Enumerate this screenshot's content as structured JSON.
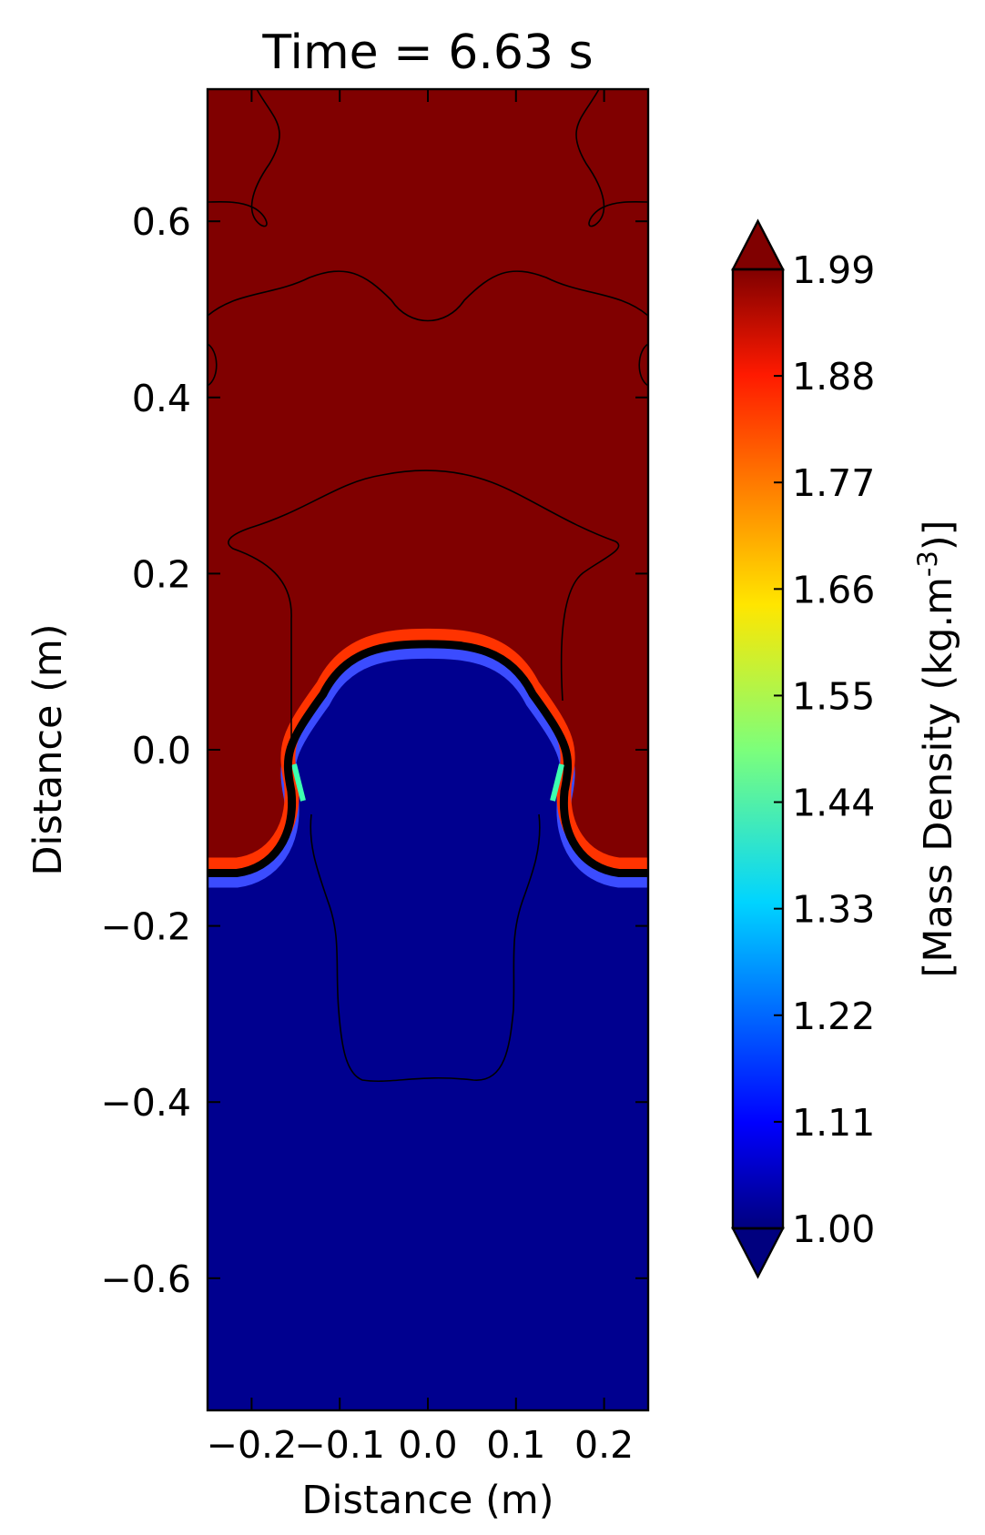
{
  "chart_data": {
    "type": "heatmap",
    "title": "Time = 6.63 s",
    "xlabel": "Distance (m)",
    "ylabel": "Distance (m)",
    "xlim": [
      -0.25,
      0.25
    ],
    "ylim": [
      -0.75,
      0.75
    ],
    "x_ticks": [
      -0.2,
      -0.1,
      0.0,
      0.1,
      0.2
    ],
    "x_tick_labels": [
      "−0.2",
      "−0.1",
      "0.0",
      "0.1",
      "0.2"
    ],
    "y_ticks": [
      0.6,
      0.4,
      0.2,
      0.0,
      -0.2,
      -0.4,
      -0.6
    ],
    "y_tick_labels": [
      "0.6",
      "0.4",
      "0.2",
      "0.0",
      "−0.2",
      "−0.4",
      "−0.6"
    ],
    "colormap": "jet",
    "colorbar": {
      "label": "[Mass Density (kg.m",
      "label_sup": "-3",
      "label_end": ")]",
      "min": 1.0,
      "max": 1.99,
      "extend": "both",
      "ticks": [
        1.99,
        1.88,
        1.77,
        1.66,
        1.55,
        1.44,
        1.33,
        1.22,
        1.11,
        1.0
      ],
      "tick_labels": [
        "1.99",
        "1.88",
        "1.77",
        "1.66",
        "1.55",
        "1.44",
        "1.33",
        "1.22",
        "1.11",
        "1.00"
      ]
    },
    "fields": {
      "upper_density": 1.99,
      "lower_density": 1.0,
      "interface_base_y": -0.14,
      "bubble_top_y": 0.12,
      "bubble_half_width": 0.155
    },
    "colors": {
      "high": "#800000",
      "low": "#00008f",
      "contour": "#000000",
      "interface": "#000000"
    }
  }
}
